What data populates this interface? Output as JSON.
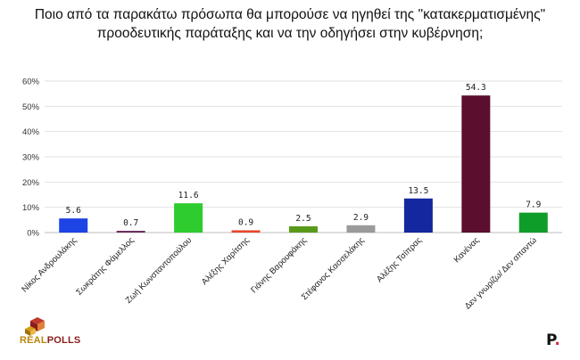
{
  "title_lines": [
    "Ποιο από τα παρακάτω πρόσωπα θα μπορούσε να ηγηθεί της \"κατακερματισμένης\"",
    "προοδευτικής παράταξης και να την οδηγήσει στην κυβέρνηση;"
  ],
  "chart_data": {
    "type": "bar",
    "title": "Ποιο από τα παρακάτω πρόσωπα θα μπορούσε να ηγηθεί της \"κατακερματισμένης\" προοδευτικής παράταξης και να την οδηγήσει στην κυβέρνηση;",
    "categories": [
      "Νίκος Ανδρουλάκης",
      "Σωκράτης Φάμελλος",
      "Ζωή Κωνσταντοπούλου",
      "Αλέξης Χαρίτσης",
      "Γιάνης Βαρουφάκης",
      "Στέφανος Κασσελάκης",
      "Αλέξης Τσίπρας",
      "Κανένας",
      "Δεν γνωρίζω/ Δεν απαντώ"
    ],
    "values": [
      5.6,
      0.7,
      11.6,
      0.9,
      2.5,
      2.9,
      13.5,
      54.3,
      7.9
    ],
    "colors": [
      "#1e44e6",
      "#6b2d5c",
      "#2ecc2e",
      "#e8452c",
      "#5a9a1a",
      "#9a9a9a",
      "#15279e",
      "#5c0e2f",
      "#0f9d2a"
    ],
    "yticks": [
      "0%",
      "10%",
      "20%",
      "30%",
      "40%",
      "50%",
      "60%"
    ],
    "ylim": [
      0,
      60
    ],
    "xlabel": "",
    "ylabel": "",
    "grid": true
  },
  "branding": {
    "left_logo_part1": "REAL",
    "left_logo_part2": "POLLS",
    "right_logo": "P",
    "right_logo_dot": "."
  }
}
